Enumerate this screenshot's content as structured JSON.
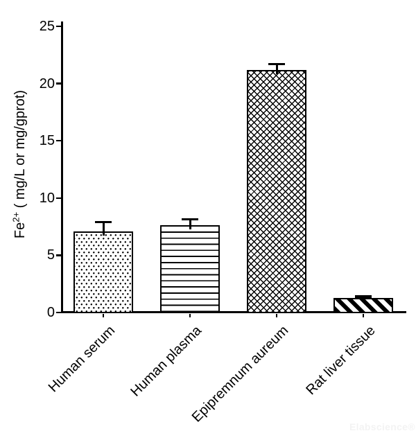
{
  "chart_data": {
    "type": "bar",
    "title": "",
    "categories": [
      "Human serum",
      "Human plasma",
      "Epipremnum aureum",
      "Rat liver tissue"
    ],
    "values": [
      7.1,
      7.6,
      21.2,
      1.25
    ],
    "errors_plus": [
      0.8,
      0.55,
      0.5,
      0.15
    ],
    "bar_patterns": [
      "dots",
      "hlines",
      "weave",
      "diagonal"
    ],
    "bar_fill": "#ffffff",
    "bar_stroke": "#000000",
    "ylabel": "Fe2+ ( mg/L or mg/gprot)",
    "ylabel_prefix": "Fe",
    "ylabel_sup": "2+",
    "ylabel_rest": " ( mg/L or mg/gprot)",
    "xlabel": "",
    "ylim": [
      0,
      25
    ],
    "yticks": [
      0,
      5,
      10,
      15,
      20,
      25
    ],
    "grid": false,
    "legend": false,
    "error_bars": "plus-direction-with-caps"
  },
  "watermark": "Elabscience®"
}
